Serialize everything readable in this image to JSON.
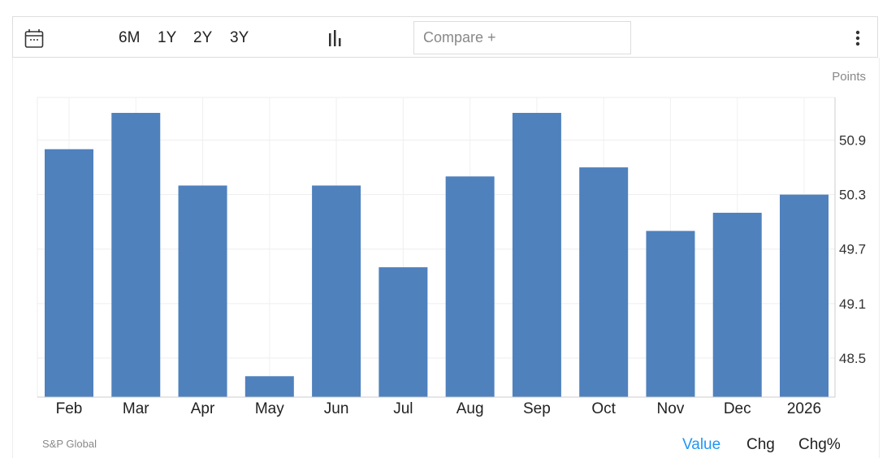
{
  "toolbar": {
    "ranges": [
      "6M",
      "1Y",
      "2Y",
      "3Y"
    ],
    "compare_placeholder": "Compare +"
  },
  "source": "S&P Global",
  "modes": {
    "value": "Value",
    "chg": "Chg",
    "chg_pct": "Chg%"
  },
  "colors": {
    "bar": "#4f81bd",
    "active_mode": "#2196f3"
  },
  "chart_data": {
    "type": "bar",
    "unit": "Points",
    "categories": [
      "Feb",
      "Mar",
      "Apr",
      "May",
      "Jun",
      "Jul",
      "Aug",
      "Sep",
      "Oct",
      "Nov",
      "Dec",
      "2026"
    ],
    "values": [
      50.8,
      51.2,
      50.4,
      48.3,
      50.4,
      49.5,
      50.5,
      51.2,
      50.6,
      49.9,
      50.1,
      50.3
    ],
    "yticks": [
      50.9,
      50.3,
      49.7,
      49.1,
      48.5
    ],
    "ylim": [
      48.07,
      51.37
    ],
    "grid": true
  }
}
